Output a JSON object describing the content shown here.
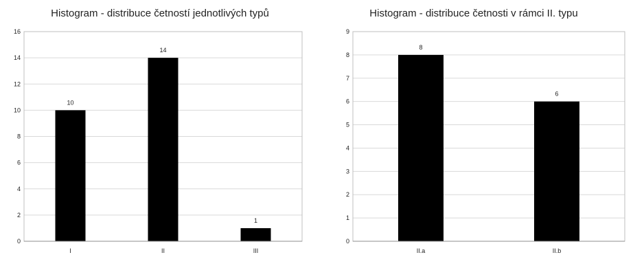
{
  "chart_data": [
    {
      "type": "bar",
      "title": "Histogram - distribuce četností jednotlivých typů",
      "categories": [
        "I",
        "II",
        "III"
      ],
      "values": [
        10,
        14,
        1
      ],
      "ylim": [
        0,
        16
      ],
      "ytick_step": 2,
      "grid": true,
      "legend": "none",
      "bar_color": "#000000"
    },
    {
      "type": "bar",
      "title": "Histogram - distribuce četnosti v rámci II. typu",
      "categories": [
        "II.a",
        "II.b"
      ],
      "values": [
        8,
        6
      ],
      "ylim": [
        0,
        9
      ],
      "ytick_step": 1,
      "grid": true,
      "legend": "none",
      "bar_color": "#000000"
    }
  ]
}
